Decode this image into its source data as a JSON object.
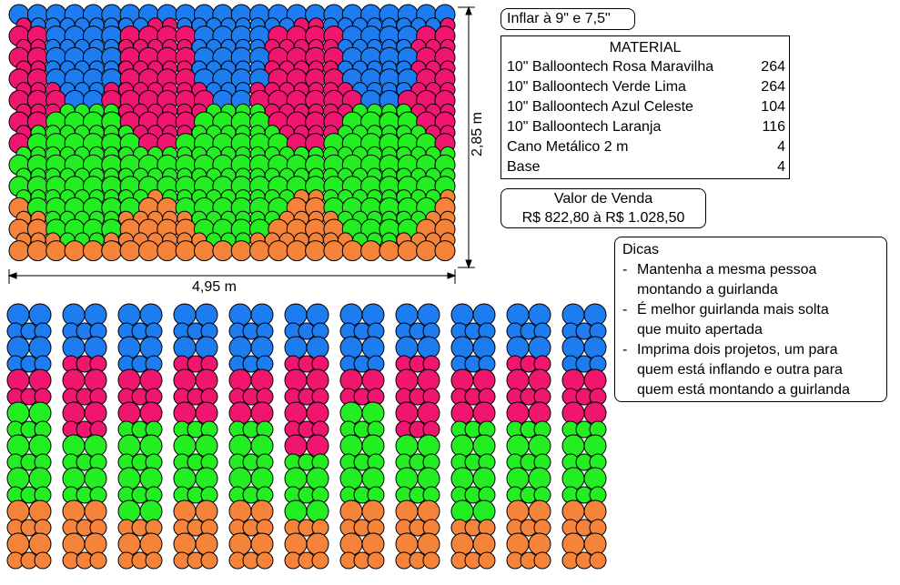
{
  "inflate_note": "Inflar à 9\" e 7,5\"",
  "material": {
    "title": "MATERIAL",
    "items": [
      {
        "name": "10\" Balloontech Rosa Maravilha",
        "qty": "264"
      },
      {
        "name": "10\" Balloontech Verde Lima",
        "qty": "264"
      },
      {
        "name": "10\" Balloontech Azul Celeste",
        "qty": "104"
      },
      {
        "name": "10\" Balloontech Laranja",
        "qty": "116"
      },
      {
        "name": "Cano Metálico 2 m",
        "qty": "4"
      },
      {
        "name": "Base",
        "qty": "4"
      }
    ]
  },
  "price": {
    "title": "Valor de Venda",
    "range": "R$ 822,80 à R$ 1.028,50"
  },
  "tips": {
    "title": "Dicas",
    "items": [
      {
        "marker": "-",
        "text_lines": [
          "Mantenha a mesma pessoa",
          "montando a guirlanda"
        ]
      },
      {
        "marker": "-",
        "text_lines": [
          "É melhor guirlanda mais solta",
          "que muito apertada"
        ]
      },
      {
        "marker": "-",
        "text_lines": [
          "Imprima dois projetos, um para",
          "quem está inflando e outra para",
          "quem está montando a guirlanda"
        ]
      }
    ]
  },
  "dimensions": {
    "width": "4,95 m",
    "height": "2,85 m"
  },
  "colors": {
    "blue": "#1c7cf0",
    "pink": "#f0156f",
    "green": "#22ee22",
    "orange": "#f5843a"
  },
  "columns_count": 11
}
